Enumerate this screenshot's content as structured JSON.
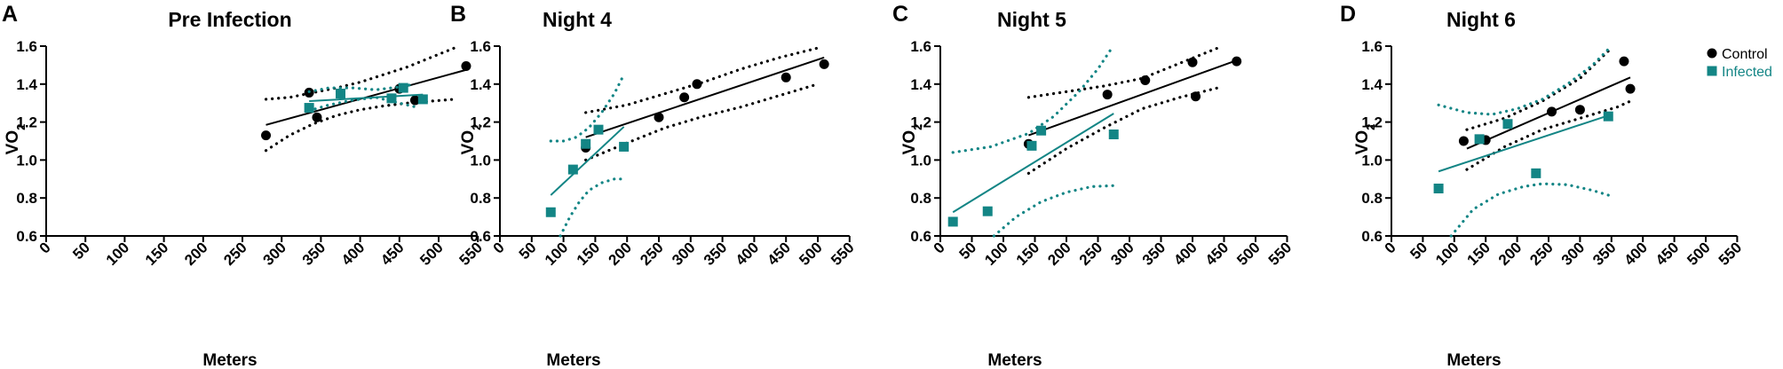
{
  "colors": {
    "control": "#000000",
    "infected": "#138585"
  },
  "legend": {
    "control": "Control",
    "infected": "Infected",
    "position": "top-right"
  },
  "chart_data": [
    {
      "type": "scatter",
      "panel_label": "A",
      "title": "Pre Infection",
      "xlabel": "Meters",
      "ylabel": "VO",
      "ylabel_sub": "2",
      "xlim": [
        0,
        550
      ],
      "ylim": [
        0.6,
        1.6
      ],
      "xticks": [
        0,
        50,
        100,
        150,
        200,
        250,
        300,
        350,
        400,
        450,
        500,
        550
      ],
      "yticks": [
        0.6,
        0.8,
        1.0,
        1.2,
        1.4,
        1.6
      ],
      "series": [
        {
          "name": "Control",
          "points": [
            [
              280,
              1.13
            ],
            [
              335,
              1.355
            ],
            [
              345,
              1.225
            ],
            [
              450,
              1.375
            ],
            [
              470,
              1.315
            ],
            [
              535,
              1.495
            ]
          ],
          "fit": {
            "x": [
              280,
              535
            ],
            "y": [
              1.185,
              1.475
            ]
          },
          "ci_upper": {
            "x": [
              280,
              310,
              340,
              370,
              400,
              430,
              460,
              490,
              520
            ],
            "y": [
              1.32,
              1.33,
              1.355,
              1.38,
              1.41,
              1.45,
              1.49,
              1.54,
              1.59
            ]
          },
          "ci_lower": {
            "x": [
              280,
              310,
              340,
              370,
              400,
              430,
              460,
              490,
              520
            ],
            "y": [
              1.05,
              1.13,
              1.19,
              1.235,
              1.265,
              1.285,
              1.3,
              1.31,
              1.32
            ]
          }
        },
        {
          "name": "Infected",
          "points": [
            [
              335,
              1.275
            ],
            [
              375,
              1.35
            ],
            [
              440,
              1.325
            ],
            [
              455,
              1.38
            ],
            [
              480,
              1.32
            ]
          ],
          "fit": {
            "x": [
              335,
              480
            ],
            "y": [
              1.31,
              1.345
            ]
          },
          "ci_upper": {
            "x": [
              335,
              360,
              390,
              420,
              450,
              470
            ],
            "y": [
              1.36,
              1.38,
              1.38,
              1.37,
              1.385,
              1.4
            ]
          },
          "ci_lower": {
            "x": [
              335,
              360,
              390,
              420,
              450,
              470
            ],
            "y": [
              1.26,
              1.29,
              1.315,
              1.33,
              1.3,
              1.28
            ]
          }
        }
      ]
    },
    {
      "type": "scatter",
      "panel_label": "B",
      "title": "Night 4",
      "xlabel": "Meters",
      "ylabel": "VO",
      "ylabel_sub": "2",
      "xlim": [
        0,
        550
      ],
      "ylim": [
        0.6,
        1.6
      ],
      "xticks": [
        0,
        50,
        100,
        150,
        200,
        250,
        300,
        350,
        400,
        450,
        500,
        550
      ],
      "yticks": [
        0.6,
        0.8,
        1.0,
        1.2,
        1.4,
        1.6
      ],
      "series": [
        {
          "name": "Control",
          "points": [
            [
              135,
              1.065
            ],
            [
              250,
              1.225
            ],
            [
              290,
              1.33
            ],
            [
              310,
              1.4
            ],
            [
              450,
              1.435
            ],
            [
              510,
              1.505
            ]
          ],
          "fit": {
            "x": [
              135,
              510
            ],
            "y": [
              1.12,
              1.54
            ]
          },
          "ci_upper": {
            "x": [
              135,
              200,
              260,
              320,
              380,
              440,
              500
            ],
            "y": [
              1.25,
              1.29,
              1.35,
              1.41,
              1.48,
              1.54,
              1.59
            ]
          },
          "ci_lower": {
            "x": [
              135,
              200,
              260,
              320,
              380,
              440,
              500
            ],
            "y": [
              1.0,
              1.09,
              1.17,
              1.23,
              1.28,
              1.34,
              1.4
            ]
          }
        },
        {
          "name": "Infected",
          "points": [
            [
              80,
              0.725
            ],
            [
              115,
              0.95
            ],
            [
              135,
              1.085
            ],
            [
              155,
              1.16
            ],
            [
              195,
              1.07
            ]
          ],
          "fit": {
            "x": [
              80,
              195
            ],
            "y": [
              0.815,
              1.175
            ]
          },
          "ci_upper": {
            "x": [
              80,
              100,
              120,
              140,
              160,
              180,
              195
            ],
            "y": [
              1.1,
              1.1,
              1.12,
              1.17,
              1.25,
              1.35,
              1.45
            ]
          },
          "ci_lower": {
            "x": [
              95,
              110,
              125,
              140,
              160,
              180,
              195
            ],
            "y": [
              0.6,
              0.7,
              0.78,
              0.84,
              0.88,
              0.9,
              0.9
            ]
          }
        }
      ]
    },
    {
      "type": "scatter",
      "panel_label": "C",
      "title": "Night 5",
      "xlabel": "Meters",
      "ylabel": "VO",
      "ylabel_sub": "2",
      "xlim": [
        0,
        550
      ],
      "ylim": [
        0.6,
        1.6
      ],
      "xticks": [
        0,
        50,
        100,
        150,
        200,
        250,
        300,
        350,
        400,
        450,
        500,
        550
      ],
      "yticks": [
        0.6,
        0.8,
        1.0,
        1.2,
        1.4,
        1.6
      ],
      "series": [
        {
          "name": "Control",
          "points": [
            [
              140,
              1.085
            ],
            [
              265,
              1.345
            ],
            [
              325,
              1.42
            ],
            [
              400,
              1.515
            ],
            [
              405,
              1.335
            ],
            [
              470,
              1.52
            ]
          ],
          "fit": {
            "x": [
              140,
              470
            ],
            "y": [
              1.13,
              1.525
            ]
          },
          "ci_upper": {
            "x": [
              140,
              200,
              260,
              320,
              380,
              440
            ],
            "y": [
              1.33,
              1.36,
              1.39,
              1.43,
              1.51,
              1.59
            ]
          },
          "ci_lower": {
            "x": [
              140,
              200,
              260,
              320,
              380,
              440
            ],
            "y": [
              0.93,
              1.06,
              1.17,
              1.27,
              1.33,
              1.38
            ]
          }
        },
        {
          "name": "Infected",
          "points": [
            [
              20,
              0.675
            ],
            [
              75,
              0.73
            ],
            [
              145,
              1.075
            ],
            [
              160,
              1.155
            ],
            [
              275,
              1.135
            ]
          ],
          "fit": {
            "x": [
              20,
              275
            ],
            "y": [
              0.725,
              1.245
            ]
          },
          "ci_upper": {
            "x": [
              20,
              80,
              140,
              180,
              220,
              250,
              270
            ],
            "y": [
              1.04,
              1.07,
              1.14,
              1.23,
              1.36,
              1.48,
              1.58
            ]
          },
          "ci_lower": {
            "x": [
              85,
              120,
              160,
              200,
              240,
              275
            ],
            "y": [
              0.6,
              0.7,
              0.78,
              0.83,
              0.86,
              0.865
            ]
          }
        }
      ]
    },
    {
      "type": "scatter",
      "panel_label": "D",
      "title": "Night 6",
      "xlabel": "Meters",
      "ylabel": "VO",
      "ylabel_sub": "2",
      "xlim": [
        0,
        550
      ],
      "ylim": [
        0.6,
        1.6
      ],
      "xticks": [
        0,
        50,
        100,
        150,
        200,
        250,
        300,
        350,
        400,
        450,
        500,
        550
      ],
      "yticks": [
        0.6,
        0.8,
        1.0,
        1.2,
        1.4,
        1.6
      ],
      "series": [
        {
          "name": "Control",
          "points": [
            [
              115,
              1.1
            ],
            [
              150,
              1.105
            ],
            [
              255,
              1.255
            ],
            [
              300,
              1.265
            ],
            [
              370,
              1.52
            ],
            [
              380,
              1.375
            ]
          ],
          "fit": {
            "x": [
              120,
              380
            ],
            "y": [
              1.06,
              1.435
            ]
          },
          "ci_upper": {
            "x": [
              120,
              180,
              240,
              300,
              350
            ],
            "y": [
              1.16,
              1.22,
              1.31,
              1.43,
              1.59
            ]
          },
          "ci_lower": {
            "x": [
              120,
              180,
              240,
              300,
              360,
              380
            ],
            "y": [
              0.95,
              1.07,
              1.16,
              1.22,
              1.28,
              1.31
            ]
          }
        },
        {
          "name": "Infected",
          "points": [
            [
              75,
              0.85
            ],
            [
              140,
              1.11
            ],
            [
              185,
              1.19
            ],
            [
              230,
              0.93
            ],
            [
              345,
              1.23
            ]
          ],
          "fit": {
            "x": [
              75,
              350
            ],
            "y": [
              0.94,
              1.24
            ]
          },
          "ci_upper": {
            "x": [
              75,
              120,
              160,
              200,
              240,
              280,
              320,
              350
            ],
            "y": [
              1.29,
              1.25,
              1.24,
              1.27,
              1.32,
              1.4,
              1.5,
              1.6
            ]
          },
          "ci_lower": {
            "x": [
              95,
              130,
              170,
              210,
              240,
              280,
              320,
              350
            ],
            "y": [
              0.6,
              0.74,
              0.82,
              0.86,
              0.875,
              0.87,
              0.84,
              0.81
            ]
          }
        }
      ]
    }
  ]
}
